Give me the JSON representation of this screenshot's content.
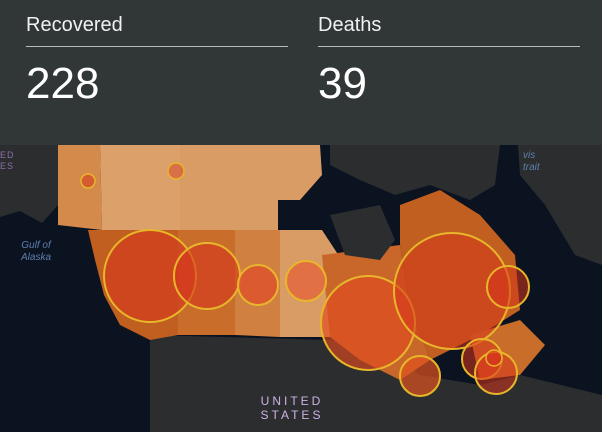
{
  "stats": {
    "recovered": {
      "label": "Recovered",
      "value": "228"
    },
    "deaths": {
      "label": "Deaths",
      "value": "39"
    }
  },
  "map": {
    "labels": {
      "gulf_of_alaska": "Gulf of\nAlaska",
      "united_states": "UNITED\nSTATES",
      "davis_strait": "vis\ntrait",
      "edge_left": "ED\nES"
    },
    "colors": {
      "header_bg": "#313637",
      "land_dark": "#2b2d2f",
      "water": "#0b1220",
      "province_light": "#dca06a",
      "province_mid": "#cc7d3a",
      "province_dark": "#c05f1f",
      "bubble_fill": "#d6351c",
      "bubble_stroke": "#e7b62a"
    }
  }
}
